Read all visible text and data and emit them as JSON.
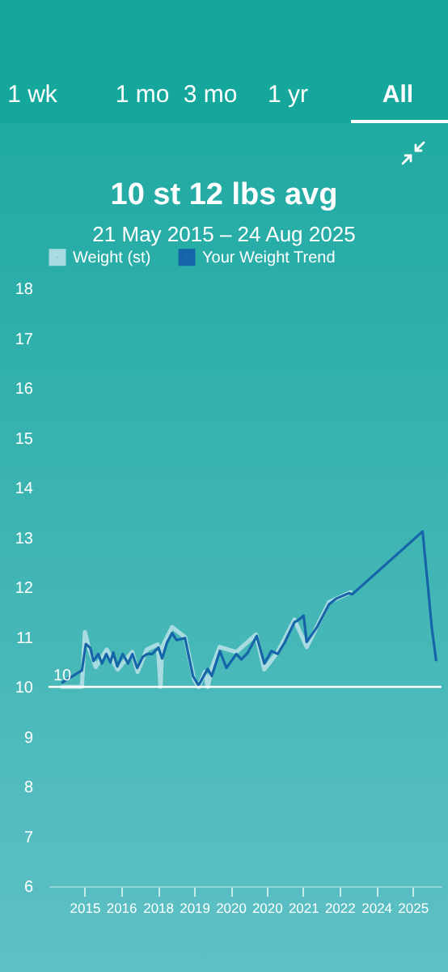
{
  "chart_data": {
    "type": "line",
    "title": "10 st 12 lbs avg",
    "subtitle": "21 May 2015 – 24 Aug 2025",
    "annotations": [
      "1 wk",
      "1 mo",
      "3 mo",
      "1 yr",
      "All"
    ],
    "xlim": [
      "2015-01-01",
      "2025-10-18"
    ],
    "xticks": [
      {
        "value": "2015-12-28",
        "label": "2015"
      },
      {
        "value": "2016-12-28",
        "label": "2016"
      },
      {
        "value": "2018-01-01",
        "label": "2018"
      },
      {
        "value": "2019-01-01",
        "label": "2019"
      },
      {
        "value": "2020-01-01",
        "label": "2020"
      },
      {
        "value": "2020-12-29",
        "label": "2020"
      },
      {
        "value": "2021-12-29",
        "label": "2021"
      },
      {
        "value": "2022-12-29",
        "label": "2022"
      },
      {
        "value": "2024-01-01",
        "label": "2024"
      },
      {
        "value": "2025-01-01",
        "label": "2025"
      }
    ],
    "ylim": [
      6,
      18
    ],
    "yticks": [
      6,
      7,
      8,
      9,
      10,
      11,
      12,
      13,
      14,
      15,
      16,
      17,
      18
    ],
    "legend": "top",
    "ref_lines": [
      {
        "axis": "y",
        "value": 10,
        "label": "10",
        "color": "#ffffff"
      }
    ],
    "series": [
      {
        "name": "Weight (st)",
        "color": "#a9dce0",
        "x": [
          "2015-05-21",
          "2015-12-02",
          "2016-01-01",
          "2016-02-07",
          "2016-04-19",
          "2016-08-07",
          "2016-11-25",
          "2017-04-19",
          "2017-06-13",
          "2017-09-13",
          "2018-01-01",
          "2018-01-29",
          "2018-02-14",
          "2018-05-25",
          "2018-10-01",
          "2019-01-01",
          "2019-02-14",
          "2019-04-19",
          "2019-05-17",
          "2019-07-01",
          "2019-09-13",
          "2020-02-28",
          "2020-09-13",
          "2020-12-05",
          "2021-04-19",
          "2021-10-04",
          "2022-02-03",
          "2022-09-16",
          "2023-04-19"
        ],
        "values": [
          10.0,
          10.0,
          11.1,
          10.8,
          10.4,
          10.75,
          10.35,
          10.7,
          10.3,
          10.75,
          10.85,
          10.0,
          10.8,
          11.2,
          11.0,
          10.15,
          10.0,
          10.3,
          10.0,
          10.4,
          10.8,
          10.7,
          11.05,
          10.35,
          10.7,
          11.35,
          10.8,
          11.7,
          11.9
        ]
      },
      {
        "name": "Your Weight Trend",
        "color": "#1565a8",
        "x": [
          "2015-05-21",
          "2015-12-02",
          "2016-01-11",
          "2016-02-25",
          "2016-03-27",
          "2016-05-14",
          "2016-06-20",
          "2016-08-03",
          "2016-09-13",
          "2016-10-11",
          "2016-11-21",
          "2017-01-15",
          "2017-03-09",
          "2017-04-22",
          "2017-06-09",
          "2017-08-03",
          "2017-09-16",
          "2017-11-07",
          "2018-01-08",
          "2018-02-14",
          "2018-04-04",
          "2018-05-25",
          "2018-07-08",
          "2018-10-01",
          "2018-12-20",
          "2019-02-14",
          "2019-04-08",
          "2019-05-17",
          "2019-06-27",
          "2019-09-16",
          "2019-11-21",
          "2020-02-28",
          "2020-04-19",
          "2020-06-23",
          "2020-09-20",
          "2020-12-05",
          "2021-02-14",
          "2021-04-19",
          "2021-06-27",
          "2021-10-04",
          "2021-11-10",
          "2022-01-04",
          "2022-02-03",
          "2022-05-21",
          "2022-09-16",
          "2022-11-25",
          "2023-04-01",
          "2023-05-07",
          "2025-04-11",
          "2025-06-05",
          "2025-07-11",
          "2025-08-24"
        ],
        "values": [
          10.09,
          10.33,
          10.86,
          10.78,
          10.52,
          10.66,
          10.47,
          10.66,
          10.49,
          10.69,
          10.41,
          10.66,
          10.47,
          10.66,
          10.38,
          10.6,
          10.66,
          10.66,
          10.79,
          10.57,
          10.89,
          11.08,
          10.94,
          10.98,
          10.22,
          10.03,
          10.22,
          10.36,
          10.22,
          10.72,
          10.38,
          10.66,
          10.55,
          10.69,
          11.02,
          10.47,
          10.72,
          10.66,
          10.89,
          11.3,
          11.34,
          11.43,
          10.9,
          11.21,
          11.66,
          11.77,
          11.88,
          11.86,
          13.12,
          11.99,
          11.21,
          10.54
        ]
      }
    ]
  }
}
